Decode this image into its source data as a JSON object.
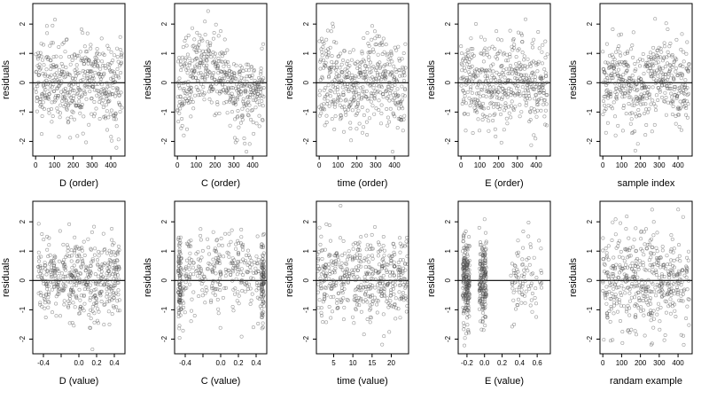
{
  "chart_data": [
    {
      "type": "scatter",
      "ylabel": "residuals",
      "xlabel": "D (order)",
      "xticks": [
        0,
        100,
        200,
        300,
        400
      ],
      "xlim": [
        -15,
        475
      ],
      "yticks": [
        -2,
        -1,
        0,
        1,
        2
      ],
      "ylim": [
        -2.5,
        2.7
      ],
      "pattern": "order",
      "seed": 11,
      "hline": 0
    },
    {
      "type": "scatter",
      "ylabel": "residuals",
      "xlabel": "C (order)",
      "xticks": [
        0,
        100,
        200,
        300,
        400
      ],
      "xlim": [
        -15,
        475
      ],
      "yticks": [
        -2,
        -1,
        0,
        1,
        2
      ],
      "ylim": [
        -2.5,
        2.7
      ],
      "pattern": "order-wave",
      "seed": 23,
      "hline": 0
    },
    {
      "type": "scatter",
      "ylabel": "residuals",
      "xlabel": "time (order)",
      "xticks": [
        0,
        100,
        200,
        300,
        400
      ],
      "xlim": [
        -15,
        475
      ],
      "yticks": [
        -2,
        -1,
        0,
        1,
        2
      ],
      "ylim": [
        -2.5,
        2.7
      ],
      "pattern": "order",
      "seed": 37,
      "hline": 0
    },
    {
      "type": "scatter",
      "ylabel": "residuals",
      "xlabel": "E (order)",
      "xticks": [
        0,
        100,
        200,
        300,
        400
      ],
      "xlim": [
        -15,
        475
      ],
      "yticks": [
        -2,
        -1,
        0,
        1,
        2
      ],
      "ylim": [
        -2.5,
        2.7
      ],
      "pattern": "order",
      "seed": 41,
      "hline": 0
    },
    {
      "type": "scatter",
      "ylabel": "residuals",
      "xlabel": "sample index",
      "xticks": [
        0,
        100,
        200,
        300,
        400
      ],
      "xlim": [
        -15,
        475
      ],
      "yticks": [
        -2,
        -1,
        0,
        1,
        2
      ],
      "ylim": [
        -2.5,
        2.7
      ],
      "pattern": "order",
      "seed": 53,
      "hline": 0
    },
    {
      "type": "scatter",
      "ylabel": "residuals",
      "xlabel": "D (value)",
      "xticks": [
        -0.4,
        -0.2,
        0.0,
        0.2,
        0.4
      ],
      "xtick_labels": [
        "-0.4",
        "",
        "0.0",
        "0.2",
        "0.4"
      ],
      "xlim": [
        -0.52,
        0.52
      ],
      "yticks": [
        -2,
        -1,
        0,
        1,
        2
      ],
      "ylim": [
        -2.5,
        2.7
      ],
      "pattern": "uniform",
      "seed": 61,
      "hline": 0
    },
    {
      "type": "scatter",
      "ylabel": "residuals",
      "xlabel": "C (value)",
      "xticks": [
        -0.4,
        -0.2,
        0.0,
        0.2,
        0.4
      ],
      "xtick_labels": [
        "-0.4",
        "",
        "0.0",
        "0.2",
        "0.4"
      ],
      "xlim": [
        -0.52,
        0.52
      ],
      "yticks": [
        -2,
        -1,
        0,
        1,
        2
      ],
      "ylim": [
        -2.5,
        2.7
      ],
      "pattern": "edges",
      "seed": 71,
      "hline": 0
    },
    {
      "type": "scatter",
      "ylabel": "residuals",
      "xlabel": "time (value)",
      "xticks": [
        5,
        10,
        15,
        20
      ],
      "xlim": [
        0.5,
        24.5
      ],
      "yticks": [
        -2,
        -1,
        0,
        1,
        2
      ],
      "ylim": [
        -2.5,
        2.7
      ],
      "pattern": "columns",
      "columns": [
        2,
        5,
        8,
        11,
        14,
        17,
        20,
        23
      ],
      "seed": 83,
      "hline": 0
    },
    {
      "type": "scatter",
      "ylabel": "residuals",
      "xlabel": "E (value)",
      "xticks": [
        -0.2,
        0.0,
        0.2,
        0.4,
        0.6
      ],
      "xtick_labels": [
        "-0.2",
        "0.0",
        "0.2",
        "0.4",
        "0.6"
      ],
      "xlim": [
        -0.3,
        0.75
      ],
      "yticks": [
        -2,
        -1,
        0,
        1,
        2
      ],
      "ylim": [
        -2.5,
        2.7
      ],
      "pattern": "skewed",
      "seed": 97,
      "hline": 0
    },
    {
      "type": "scatter",
      "ylabel": "residuals",
      "xlabel": "randam example",
      "xticks": [
        0,
        100,
        200,
        300,
        400
      ],
      "xlim": [
        -15,
        475
      ],
      "yticks": [
        -2,
        -1,
        0,
        1,
        2
      ],
      "ylim": [
        -2.5,
        2.7
      ],
      "pattern": "random",
      "seed": 101,
      "hline": 0
    }
  ]
}
